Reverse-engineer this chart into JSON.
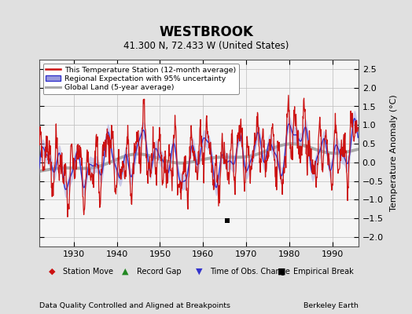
{
  "title": "WESTBROOK",
  "subtitle": "41.300 N, 72.433 W (United States)",
  "ylabel": "Temperature Anomaly (°C)",
  "xlabel_left": "Data Quality Controlled and Aligned at Breakpoints",
  "xlabel_right": "Berkeley Earth",
  "xlim": [
    1922,
    1996
  ],
  "ylim": [
    -2.25,
    2.75
  ],
  "yticks": [
    -2,
    -1.5,
    -1,
    -0.5,
    0,
    0.5,
    1,
    1.5,
    2,
    2.5
  ],
  "xticks": [
    1930,
    1940,
    1950,
    1960,
    1970,
    1980,
    1990
  ],
  "bg_color": "#e0e0e0",
  "plot_bg_color": "#f5f5f5",
  "grid_color": "#bbbbbb",
  "regional_color": "#3333cc",
  "regional_band_color": "#9999dd",
  "station_color": "#cc1111",
  "global_color": "#aaaaaa",
  "empirical_break_year": 1965.5,
  "empirical_break_value": -1.55
}
